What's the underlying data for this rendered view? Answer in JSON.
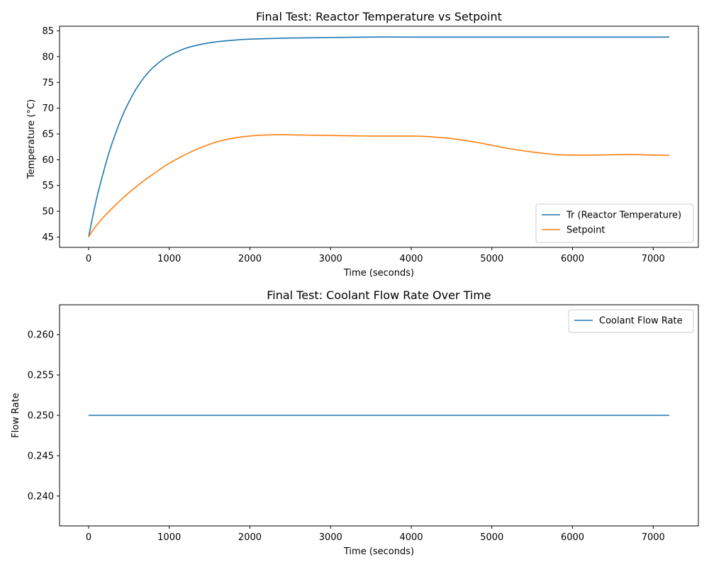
{
  "chart_data": [
    {
      "type": "line",
      "title": "Final Test: Reactor Temperature vs Setpoint",
      "xlabel": "Time (seconds)",
      "ylabel": "Temperature (°C)",
      "xlim": [
        -360,
        7560
      ],
      "ylim": [
        43.0,
        85.9
      ],
      "xticks": [
        0,
        1000,
        2000,
        3000,
        4000,
        5000,
        6000,
        7000
      ],
      "yticks": [
        45,
        50,
        55,
        60,
        65,
        70,
        75,
        80,
        85
      ],
      "grid": false,
      "legend_position": "lower-right",
      "series": [
        {
          "name": "Tr (Reactor Temperature)",
          "color": "#1f77b4",
          "x": [
            0,
            50,
            100,
            150,
            200,
            250,
            300,
            400,
            500,
            600,
            700,
            800,
            900,
            1000,
            1200,
            1400,
            1600,
            1800,
            2000,
            2500,
            3000,
            3500,
            4000,
            5000,
            6000,
            7200
          ],
          "y": [
            45.0,
            48.9,
            52.5,
            55.6,
            58.5,
            61.2,
            63.6,
            67.8,
            71.2,
            74.0,
            76.2,
            77.9,
            79.2,
            80.2,
            81.6,
            82.4,
            82.9,
            83.2,
            83.4,
            83.6,
            83.7,
            83.8,
            83.8,
            83.8,
            83.8,
            83.8
          ]
        },
        {
          "name": "Setpoint",
          "color": "#ff7f0e",
          "x": [
            0,
            50,
            100,
            200,
            300,
            400,
            500,
            600,
            700,
            800,
            900,
            1000,
            1200,
            1400,
            1600,
            1800,
            2000,
            2200,
            2400,
            2600,
            2800,
            3000,
            3500,
            4000,
            4200,
            4500,
            4800,
            5000,
            5200,
            5500,
            5800,
            6000,
            6300,
            6700,
            7000,
            7200
          ],
          "y": [
            45.0,
            46.3,
            47.3,
            49.1,
            50.7,
            52.2,
            53.6,
            54.9,
            56.1,
            57.2,
            58.3,
            59.3,
            61.0,
            62.4,
            63.5,
            64.2,
            64.6,
            64.8,
            64.85,
            64.8,
            64.75,
            64.7,
            64.6,
            64.6,
            64.5,
            64.1,
            63.4,
            62.8,
            62.2,
            61.5,
            61.0,
            60.9,
            60.9,
            61.0,
            60.9,
            60.85
          ]
        }
      ]
    },
    {
      "type": "line",
      "title": "Final Test: Coolant Flow Rate Over Time",
      "xlabel": "Time (seconds)",
      "ylabel": "Flow Rate",
      "xlim": [
        -360,
        7560
      ],
      "ylim": [
        0.2363,
        0.2637
      ],
      "xticks": [
        0,
        1000,
        2000,
        3000,
        4000,
        5000,
        6000,
        7000
      ],
      "yticks": [
        0.24,
        0.245,
        0.25,
        0.255,
        0.26
      ],
      "ytick_labels": [
        "0.240",
        "0.245",
        "0.250",
        "0.255",
        "0.260"
      ],
      "grid": false,
      "legend_position": "upper-right",
      "series": [
        {
          "name": "Coolant Flow Rate",
          "color": "#1f77b4",
          "x": [
            0,
            7200
          ],
          "y": [
            0.25,
            0.25
          ]
        }
      ]
    }
  ]
}
